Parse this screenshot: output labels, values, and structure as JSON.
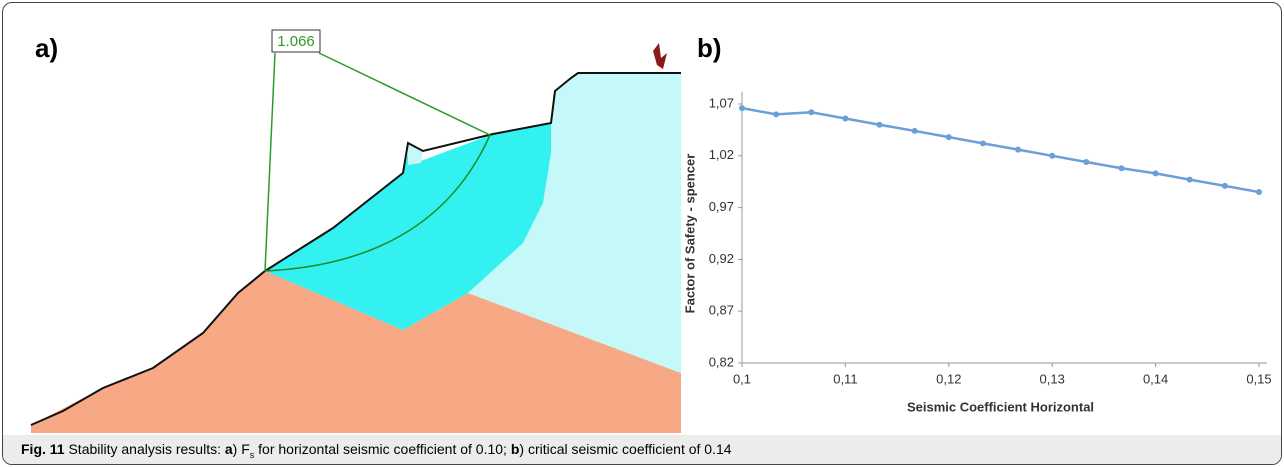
{
  "figure": {
    "panel_a_label": "a)",
    "safety_factor_label": "1.066",
    "panel_b_label": "b)"
  },
  "chart_data": {
    "type": "line",
    "x_label": "Seismic Coefficient Horizontal",
    "y_label": "Factor of Safety - spencer",
    "x": [
      0.1,
      0.1033,
      0.1067,
      0.11,
      0.1133,
      0.1167,
      0.12,
      0.1233,
      0.1267,
      0.13,
      0.1333,
      0.1367,
      0.14,
      0.1433,
      0.1467,
      0.15
    ],
    "values": [
      1.066,
      1.06,
      1.062,
      1.056,
      1.05,
      1.044,
      1.038,
      1.032,
      1.026,
      1.02,
      1.014,
      1.008,
      1.003,
      0.997,
      0.991,
      0.985
    ],
    "color": "#6a9fd8",
    "xlim": [
      0.1,
      0.15
    ],
    "xticks": [
      {
        "value": 0.1,
        "label": "0,1"
      },
      {
        "value": 0.11,
        "label": "0,11"
      },
      {
        "value": 0.12,
        "label": "0,12"
      },
      {
        "value": 0.13,
        "label": "0,13"
      },
      {
        "value": 0.14,
        "label": "0,14"
      },
      {
        "value": 0.15,
        "label": "0,15"
      }
    ],
    "ylim": [
      0.82,
      1.07
    ],
    "yticks": [
      {
        "value": 0.82,
        "label": "0,82"
      },
      {
        "value": 0.87,
        "label": "0,87"
      },
      {
        "value": 0.92,
        "label": "0,92"
      },
      {
        "value": 0.97,
        "label": "0,97"
      },
      {
        "value": 1.02,
        "label": "1,02"
      },
      {
        "value": 1.07,
        "label": "1,07"
      }
    ]
  },
  "caption": {
    "label": "Fig. 11",
    "parts": [
      " Stability analysis results: ",
      "a",
      ") F",
      "s",
      " for horizontal seismic coefficient of 0.10; ",
      "b",
      ") critical seismic coefficient of 0.14"
    ]
  }
}
